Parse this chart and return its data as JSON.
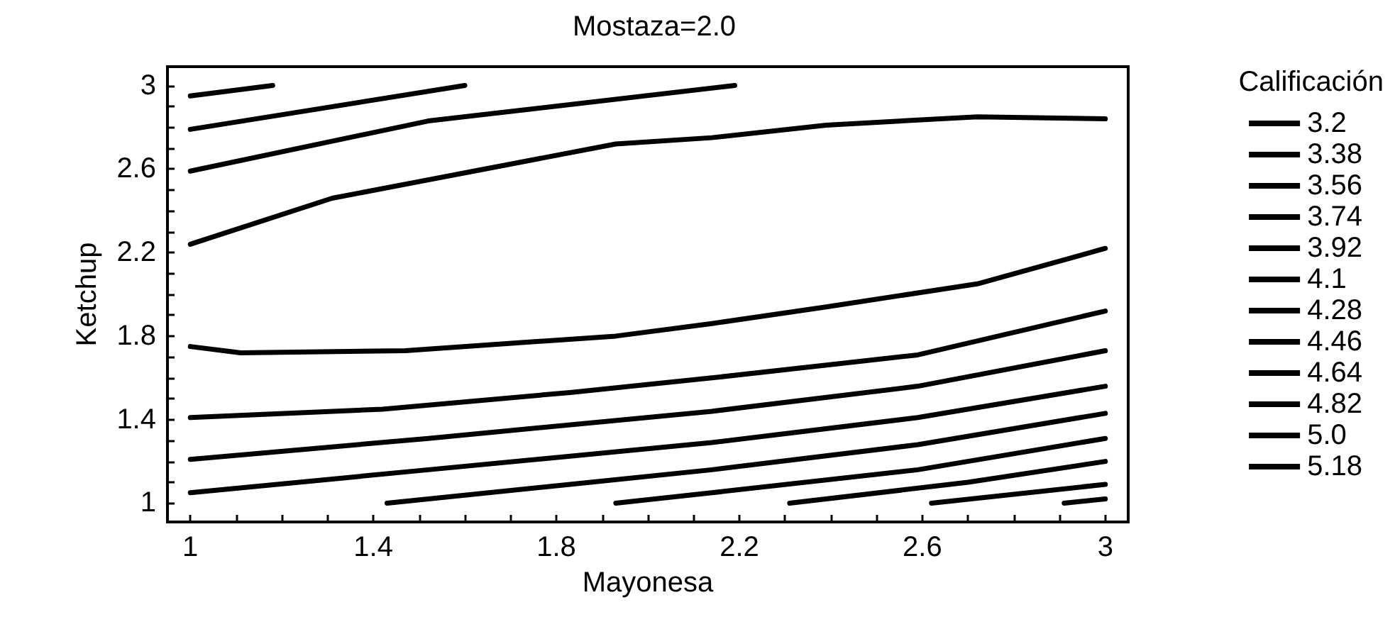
{
  "chart_data": {
    "type": "line",
    "title": "Mostaza=2.0",
    "xlabel": "Mayonesa",
    "ylabel": "Ketchup",
    "legend_title": "Calificación",
    "legend": "right",
    "marker": "none",
    "line_style": "solid",
    "grid": false,
    "xlim": [
      0.95,
      3.05
    ],
    "ylim": [
      0.91,
      3.09
    ],
    "xticks": [
      1,
      {
        "value": 1.1,
        "label": null
      },
      {
        "value": 1.2,
        "label": null
      },
      {
        "value": 1.3,
        "label": null
      },
      1.4,
      {
        "value": 1.5,
        "label": null
      },
      {
        "value": 1.6,
        "label": null
      },
      {
        "value": 1.7,
        "label": null
      },
      1.8,
      {
        "value": 1.9,
        "label": null
      },
      {
        "value": 2.0,
        "label": null
      },
      {
        "value": 2.1,
        "label": null
      },
      2.2,
      {
        "value": 2.3,
        "label": null
      },
      {
        "value": 2.4,
        "label": null
      },
      {
        "value": 2.5,
        "label": null
      },
      2.6,
      {
        "value": 2.7,
        "label": null
      },
      {
        "value": 2.8,
        "label": null
      },
      {
        "value": 2.9,
        "label": null
      },
      3
    ],
    "yticks": [
      1,
      {
        "value": 1.1,
        "label": null
      },
      {
        "value": 1.2,
        "label": null
      },
      {
        "value": 1.3,
        "label": null
      },
      1.4,
      {
        "value": 1.5,
        "label": null
      },
      {
        "value": 1.6,
        "label": null
      },
      {
        "value": 1.7,
        "label": null
      },
      1.8,
      {
        "value": 1.9,
        "label": null
      },
      {
        "value": 2.0,
        "label": null
      },
      {
        "value": 2.1,
        "label": null
      },
      2.2,
      {
        "value": 2.3,
        "label": null
      },
      {
        "value": 2.4,
        "label": null
      },
      {
        "value": 2.5,
        "label": null
      },
      2.6,
      {
        "value": 2.7,
        "label": null
      },
      {
        "value": 2.8,
        "label": null
      },
      {
        "value": 2.9,
        "label": null
      },
      3
    ],
    "series": [
      {
        "name": "3.2",
        "color": "#000000",
        "x": [
          1.0,
          1.31,
          1.62,
          1.93,
          2.14,
          2.39,
          2.72,
          3.0,
          null,
          1.0,
          1.11,
          1.47,
          1.73,
          1.93,
          2.14,
          2.39,
          2.72,
          3.0
        ],
        "values": [
          2.24,
          2.46,
          2.59,
          2.72,
          2.75,
          2.81,
          2.85,
          2.84,
          null,
          1.75,
          1.72,
          1.73,
          1.77,
          1.8,
          1.86,
          1.94,
          2.05,
          2.22
        ]
      },
      {
        "name": "3.38",
        "color": "#000000",
        "x": [
          1.0,
          1.52,
          2.19,
          null,
          1.0,
          1.42,
          1.83,
          2.14,
          2.59,
          3.0
        ],
        "values": [
          2.59,
          2.83,
          3.0,
          null,
          1.41,
          1.45,
          1.53,
          1.6,
          1.71,
          1.92
        ]
      },
      {
        "name": "3.56",
        "color": "#000000",
        "x": [
          1.0,
          1.6,
          null,
          1.0,
          1.52,
          2.14,
          2.59,
          3.0
        ],
        "values": [
          2.79,
          3.0,
          null,
          1.21,
          1.31,
          1.44,
          1.56,
          1.73
        ]
      },
      {
        "name": "3.74",
        "color": "#000000",
        "x": [
          1.0,
          1.18,
          null,
          1.0,
          1.52,
          2.14,
          2.59,
          3.0
        ],
        "values": [
          2.95,
          3.0,
          null,
          1.05,
          1.16,
          1.29,
          1.41,
          1.56
        ]
      },
      {
        "name": "3.92",
        "color": "#000000",
        "x": [
          1.43,
          1.83,
          2.14,
          2.59,
          3.0
        ],
        "values": [
          1.0,
          1.09,
          1.16,
          1.28,
          1.43
        ]
      },
      {
        "name": "4.1",
        "color": "#000000",
        "x": [
          1.93,
          2.14,
          2.59,
          3.0
        ],
        "values": [
          1.0,
          1.05,
          1.16,
          1.31
        ]
      },
      {
        "name": "4.28",
        "color": "#000000",
        "x": [
          2.31,
          2.7,
          3.0
        ],
        "values": [
          1.0,
          1.1,
          1.2
        ]
      },
      {
        "name": "4.46",
        "color": "#000000",
        "x": [
          2.62,
          3.0
        ],
        "values": [
          1.0,
          1.09
        ]
      },
      {
        "name": "4.64",
        "color": "#000000",
        "x": [
          2.91,
          3.0
        ],
        "values": [
          1.0,
          1.02
        ]
      },
      {
        "name": "4.82",
        "color": "#000000"
      },
      {
        "name": "5.0",
        "color": "#000000"
      },
      {
        "name": "5.18",
        "color": "#000000"
      }
    ]
  }
}
